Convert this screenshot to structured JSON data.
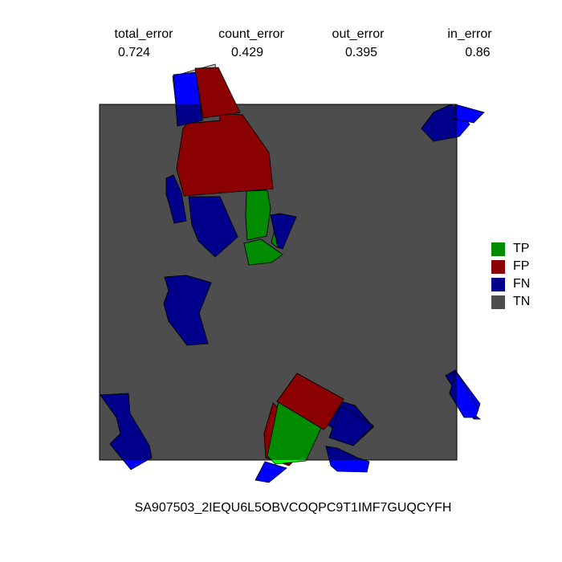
{
  "metrics": [
    {
      "name": "total_error",
      "value": "0.724"
    },
    {
      "name": "count_error",
      "value": "0.429"
    },
    {
      "name": "out_error",
      "value": "0.395"
    },
    {
      "name": "in_error",
      "value": "0.86"
    }
  ],
  "legend": [
    {
      "label": "TP",
      "color": "#008b00"
    },
    {
      "label": "FP",
      "color": "#8b0000"
    },
    {
      "label": "FN",
      "color": "#00008b"
    },
    {
      "label": "TN",
      "color": "#4d4d4d"
    }
  ],
  "outside_colors": {
    "TP": "#00ff00",
    "FP": "#8b0000",
    "FN": "#0000ff",
    "TN": "#c0c0c0"
  },
  "caption": "SA907503_2IEQU6L5OBVCOQPC9T1IMF7GUQCYFH",
  "chart_data": {
    "type": "segmentation-map",
    "title": "SA907503_2IEQU6L5OBVCOQPC9T1IMF7GUQCYFH",
    "categories": [
      "TP",
      "FP",
      "FN",
      "TN"
    ],
    "regions": [
      {
        "class": "FN"
      },
      {
        "class": "FN"
      },
      {
        "class": "FN"
      },
      {
        "class": "FN"
      },
      {
        "class": "FP"
      },
      {
        "class": "TP"
      },
      {
        "class": "TN"
      },
      {
        "class": "FN"
      },
      {
        "class": "FN"
      },
      {
        "class": "FN"
      },
      {
        "class": "TP"
      },
      {
        "class": "TP"
      },
      {
        "class": "FP"
      },
      {
        "class": "FN"
      },
      {
        "class": "FN"
      },
      {
        "class": "FN"
      },
      {
        "class": "FN"
      },
      {
        "class": "FP"
      },
      {
        "class": "FN"
      },
      {
        "class": "TP"
      },
      {
        "class": "FP"
      },
      {
        "class": "FN"
      },
      {
        "class": "FN"
      }
    ]
  }
}
